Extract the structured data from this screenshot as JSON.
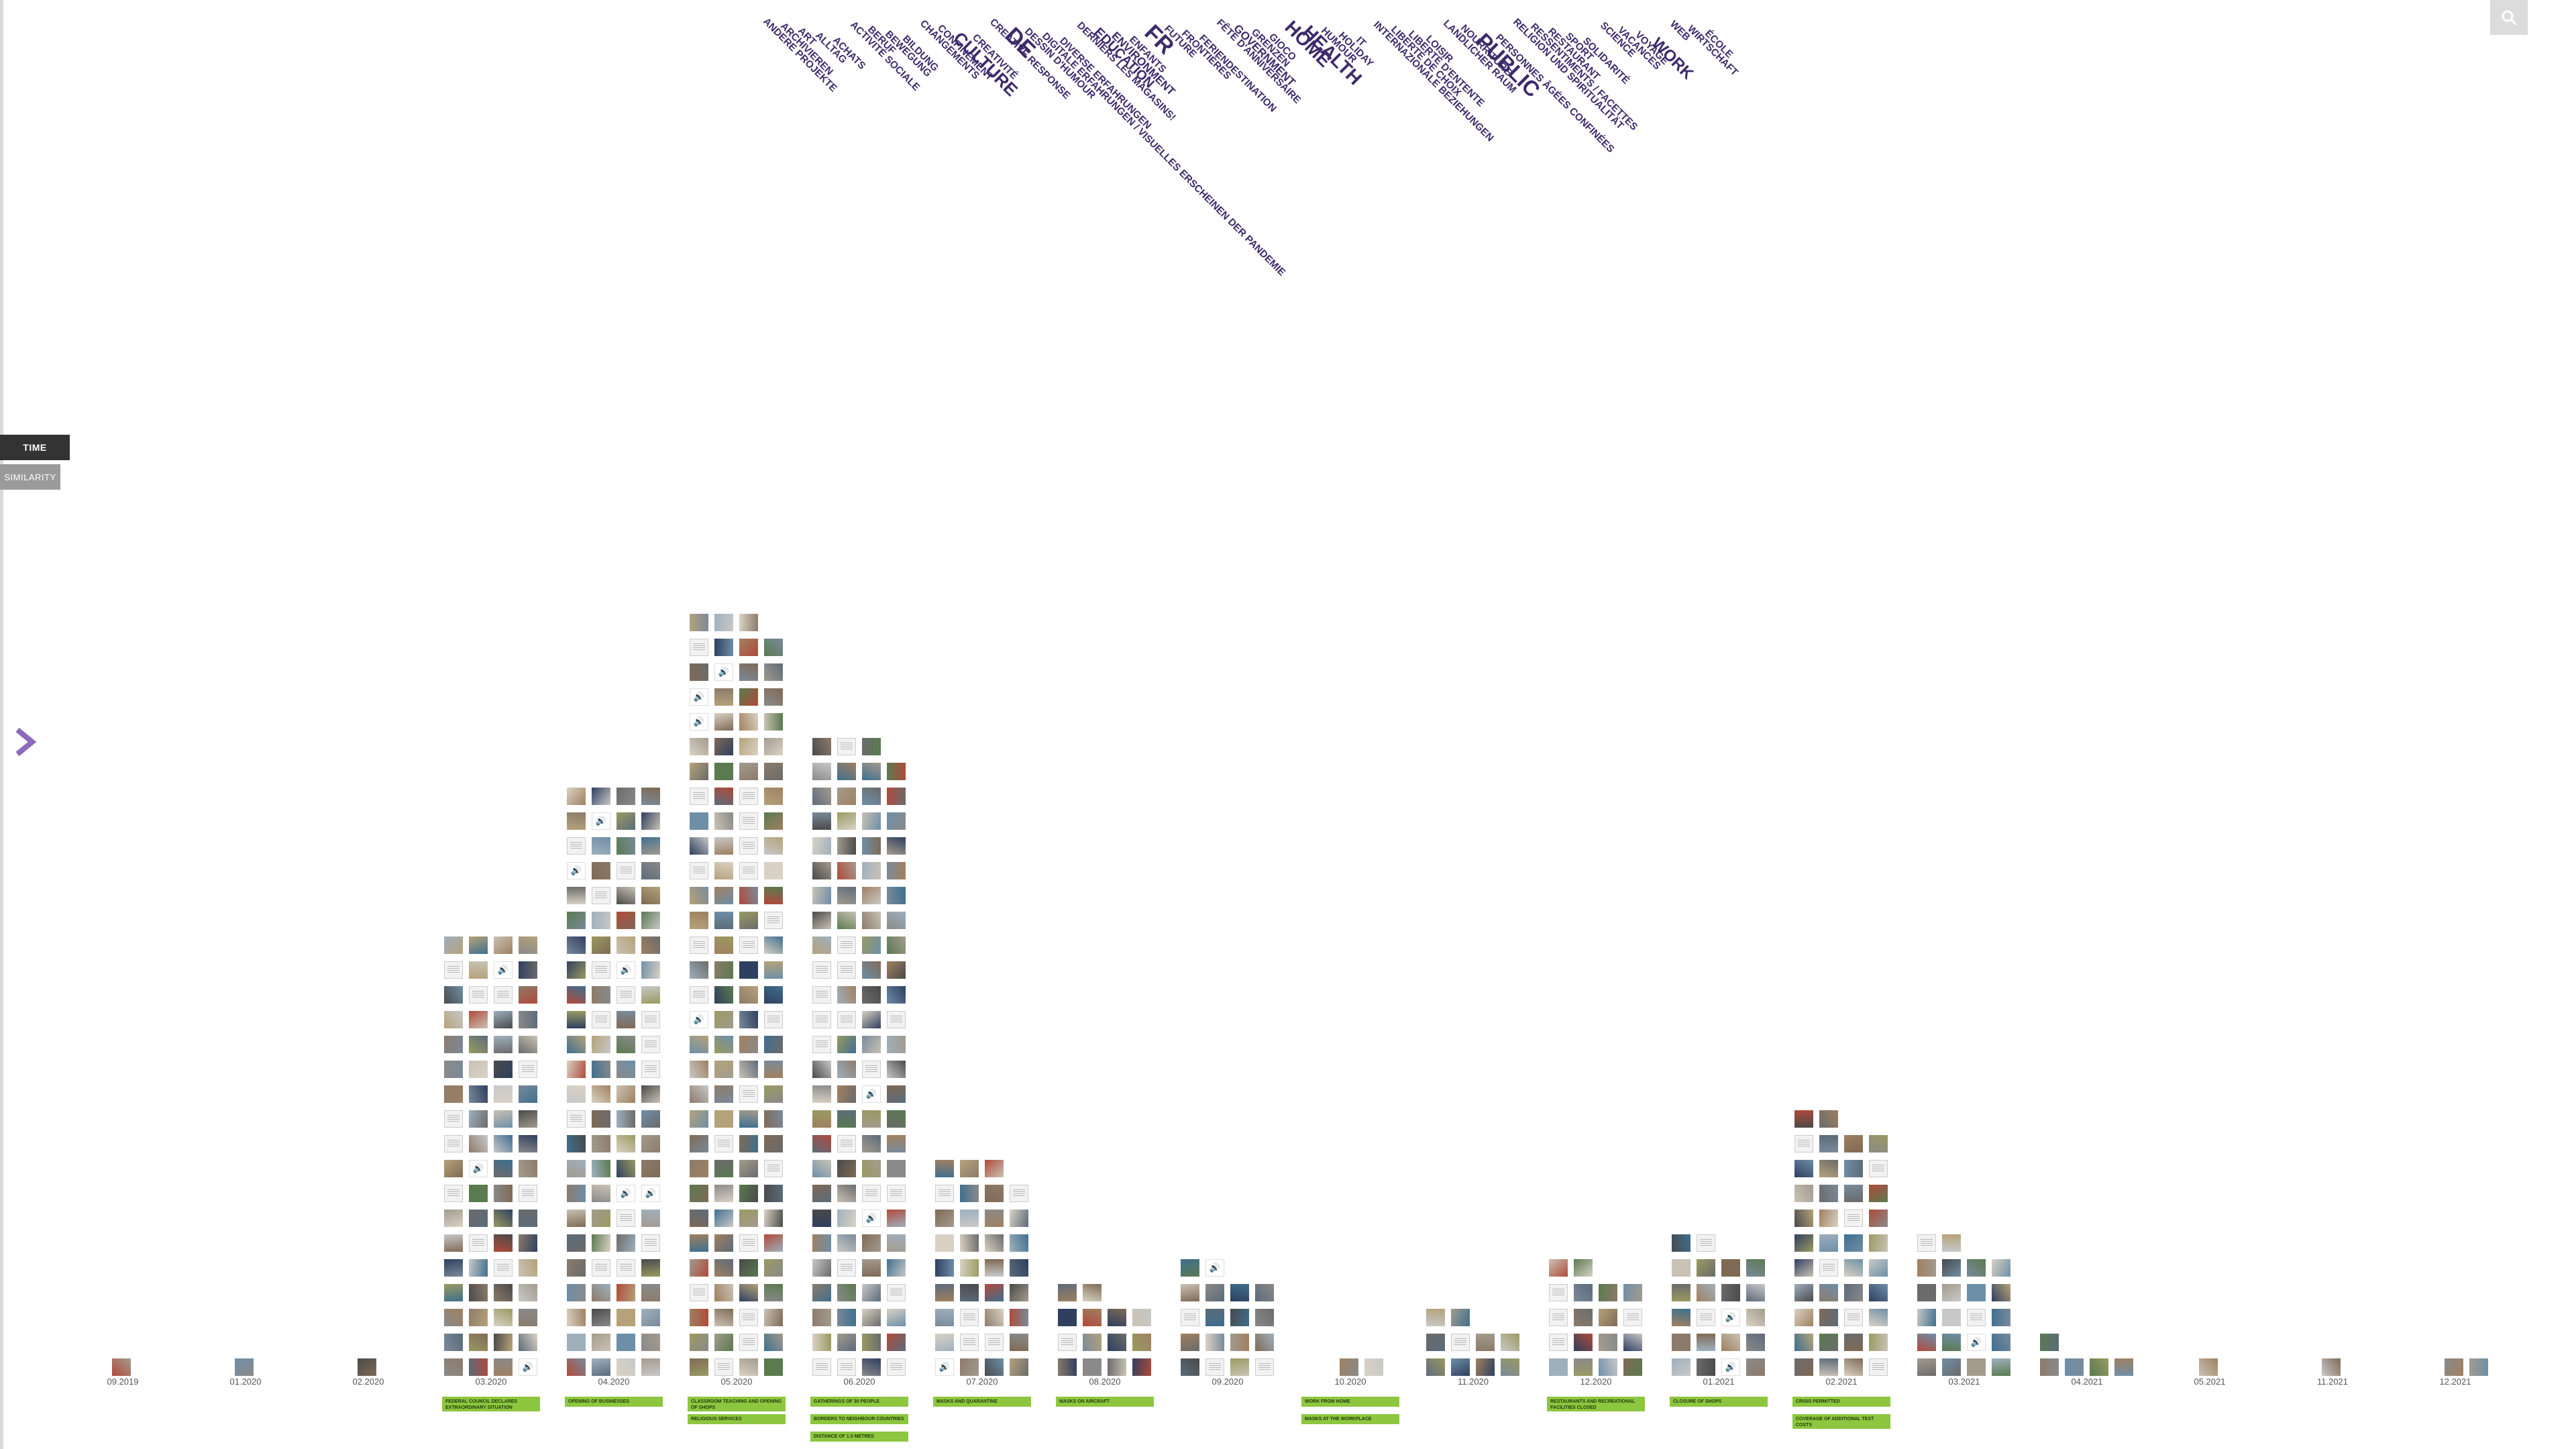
{
  "view": {
    "time_label": "TIME",
    "similarity_label": "SIMILARITY"
  },
  "tags": [
    {
      "text": "ANDERE PROJEKTE",
      "size": 15
    },
    {
      "text": "ARCHIVIEREN",
      "size": 15
    },
    {
      "text": "ART",
      "size": 15
    },
    {
      "text": "ALLTAG",
      "size": 15
    },
    {
      "text": "ACHATS",
      "size": 15
    },
    {
      "text": "ACTIVITÉ SOCIALE",
      "size": 15
    },
    {
      "text": "BERUF",
      "size": 15
    },
    {
      "text": "BEWEGUNG",
      "size": 15
    },
    {
      "text": "BILDUNG",
      "size": 15
    },
    {
      "text": "CHANGEMENTS",
      "size": 15
    },
    {
      "text": "CONFINEMENT",
      "size": 15
    },
    {
      "text": "CULTURE",
      "size": 26
    },
    {
      "text": "CREATIVITÉ",
      "size": 15
    },
    {
      "text": "CREATIVE RESPONSE",
      "size": 15
    },
    {
      "text": "DE",
      "size": 34
    },
    {
      "text": "DESSIN D'HUMOUR",
      "size": 15
    },
    {
      "text": "DIGITALE ERFAHRUNGEN / VISUELLES ERSCHEINEN DER PANDEMIE",
      "size": 15
    },
    {
      "text": "DIVERSE ERFAHRUNGEN",
      "size": 15
    },
    {
      "text": "DERNIERS LES MAGASINS!",
      "size": 15
    },
    {
      "text": "EDUCATION",
      "size": 20
    },
    {
      "text": "ENVIRONMENT",
      "size": 17
    },
    {
      "text": "ENFANTS",
      "size": 15
    },
    {
      "text": "FR",
      "size": 34
    },
    {
      "text": "FUTURE",
      "size": 15
    },
    {
      "text": "FRONTIÈRES",
      "size": 15
    },
    {
      "text": "FERIENDESTINATION",
      "size": 15
    },
    {
      "text": "FÊTE D'ANNIVERSAIRE",
      "size": 15
    },
    {
      "text": "GOVERNMENT",
      "size": 17
    },
    {
      "text": "GRENZEN",
      "size": 15
    },
    {
      "text": "GIOCO",
      "size": 15
    },
    {
      "text": "HOME",
      "size": 28
    },
    {
      "text": "HEALTH",
      "size": 28
    },
    {
      "text": "HUMOUR",
      "size": 15
    },
    {
      "text": "HOLIDAY",
      "size": 15
    },
    {
      "text": "IT",
      "size": 15
    },
    {
      "text": "INTERNAZIONALE BEZIEHUNGEN",
      "size": 15
    },
    {
      "text": "LIBERTÉ DE CHOIX",
      "size": 15
    },
    {
      "text": "LIBERTÉ D'ENTENTE",
      "size": 15
    },
    {
      "text": "LOISIR",
      "size": 15
    },
    {
      "text": "LANDLICHER RAUM",
      "size": 15
    },
    {
      "text": "NOURRITURE",
      "size": 15
    },
    {
      "text": "PUBLIC",
      "size": 32
    },
    {
      "text": "PERSONNES ÂGÉES CONFINÉES",
      "size": 15
    },
    {
      "text": "RELIGION UND SPIRITUALITÄT",
      "size": 15
    },
    {
      "text": "RESSENTIMENTS / FACETTES",
      "size": 15
    },
    {
      "text": "RESTAURANT",
      "size": 15
    },
    {
      "text": "SPORT",
      "size": 15
    },
    {
      "text": "SOLIDARITÉ",
      "size": 15
    },
    {
      "text": "SCIENCE",
      "size": 15
    },
    {
      "text": "VACANCES",
      "size": 15
    },
    {
      "text": "VOYAGE",
      "size": 15
    },
    {
      "text": "WORK",
      "size": 24
    },
    {
      "text": "WEB",
      "size": 15
    },
    {
      "text": "WIRTSCHAFT",
      "size": 15
    },
    {
      "text": "ÉCOLE",
      "size": 15
    }
  ],
  "months": [
    "09.2019",
    "01.2020",
    "02.2020",
    "03.2020",
    "04.2020",
    "05.2020",
    "06.2020",
    "07.2020",
    "08.2020",
    "09.2020",
    "10.2020",
    "11.2020",
    "12.2020",
    "01.2021",
    "02.2021",
    "03.2021",
    "04.2021",
    "05.2021",
    "11.2021",
    "12.2021"
  ],
  "columns": [
    {
      "month": "09.2019",
      "count": 1
    },
    {
      "month": "01.2020",
      "count": 1
    },
    {
      "month": "02.2020",
      "count": 1
    },
    {
      "month": "03.2020",
      "count": 72
    },
    {
      "month": "04.2020",
      "count": 96
    },
    {
      "month": "05.2020",
      "count": 123
    },
    {
      "month": "06.2020",
      "count": 103
    },
    {
      "month": "07.2020",
      "count": 35
    },
    {
      "month": "08.2020",
      "count": 14
    },
    {
      "month": "09.2020",
      "count": 18
    },
    {
      "month": "10.2020",
      "count": 2
    },
    {
      "month": "11.2020",
      "count": 10
    },
    {
      "month": "12.2020",
      "count": 18
    },
    {
      "month": "01.2021",
      "count": 22
    },
    {
      "month": "02.2021",
      "count": 42
    },
    {
      "month": "03.2021",
      "count": 22
    },
    {
      "month": "04.2021",
      "count": 5
    },
    {
      "month": "05.2021",
      "count": 1
    },
    {
      "month": "11.2021",
      "count": 1
    },
    {
      "month": "12.2021",
      "count": 2
    }
  ],
  "events": [
    {
      "month": "03.2020",
      "labels": [
        "FEDERAL COUNCIL DECLARES EXTRAORDINARY SITUATION"
      ]
    },
    {
      "month": "04.2020",
      "labels": [
        "OPENING OF BUSINESSES"
      ]
    },
    {
      "month": "05.2020",
      "labels": [
        "CLASSROOM TEACHING AND OPENING OF SHOPS",
        "RELIGIOUS SERVICES"
      ]
    },
    {
      "month": "06.2020",
      "labels": [
        "GATHERINGS OF 30 PEOPLE",
        "BORDERS TO NEIGHBOUR COUNTRIES",
        "DISTANCE OF 1.5 METRES"
      ]
    },
    {
      "month": "07.2020",
      "labels": [
        "MASKS AND QUARANTINE"
      ]
    },
    {
      "month": "08.2020",
      "labels": [
        "MASKS ON AIRCRAFT"
      ]
    },
    {
      "month": "10.2020",
      "labels": [
        "WORK FROM HOME",
        "MASKS AT THE WORKPLACE"
      ]
    },
    {
      "month": "12.2020",
      "labels": [
        "RESTAURANTS AND RECREATIONAL FACILITIES CLOSED"
      ]
    },
    {
      "month": "01.2021",
      "labels": [
        "CLOSURE OF SHOPS"
      ]
    },
    {
      "month": "02.2021",
      "labels": [
        "CRISIS PERMITTED",
        "COVERAGE OF ADDITIONAL TEST COSTS"
      ]
    }
  ],
  "thumbnail_palette": [
    "#6b6b6b",
    "#8a8a8a",
    "#a39b8e",
    "#5c6b7a",
    "#b5a27a",
    "#7f6a55",
    "#9fb0bd",
    "#c9c2b5",
    "#4a4a4a",
    "#8c7b6b",
    "#6e8fa8",
    "#b04a3a",
    "#3f6f8f",
    "#9a9a62",
    "#c8c8c8",
    "#d9d2c4",
    "#5a7a50",
    "#2f3f5f",
    "#a08060",
    "#7a8a9a"
  ],
  "colors": {
    "tag_text": "#3d2a6b",
    "event_green": "#8dc63f",
    "arrow": "#8a6bbd"
  }
}
